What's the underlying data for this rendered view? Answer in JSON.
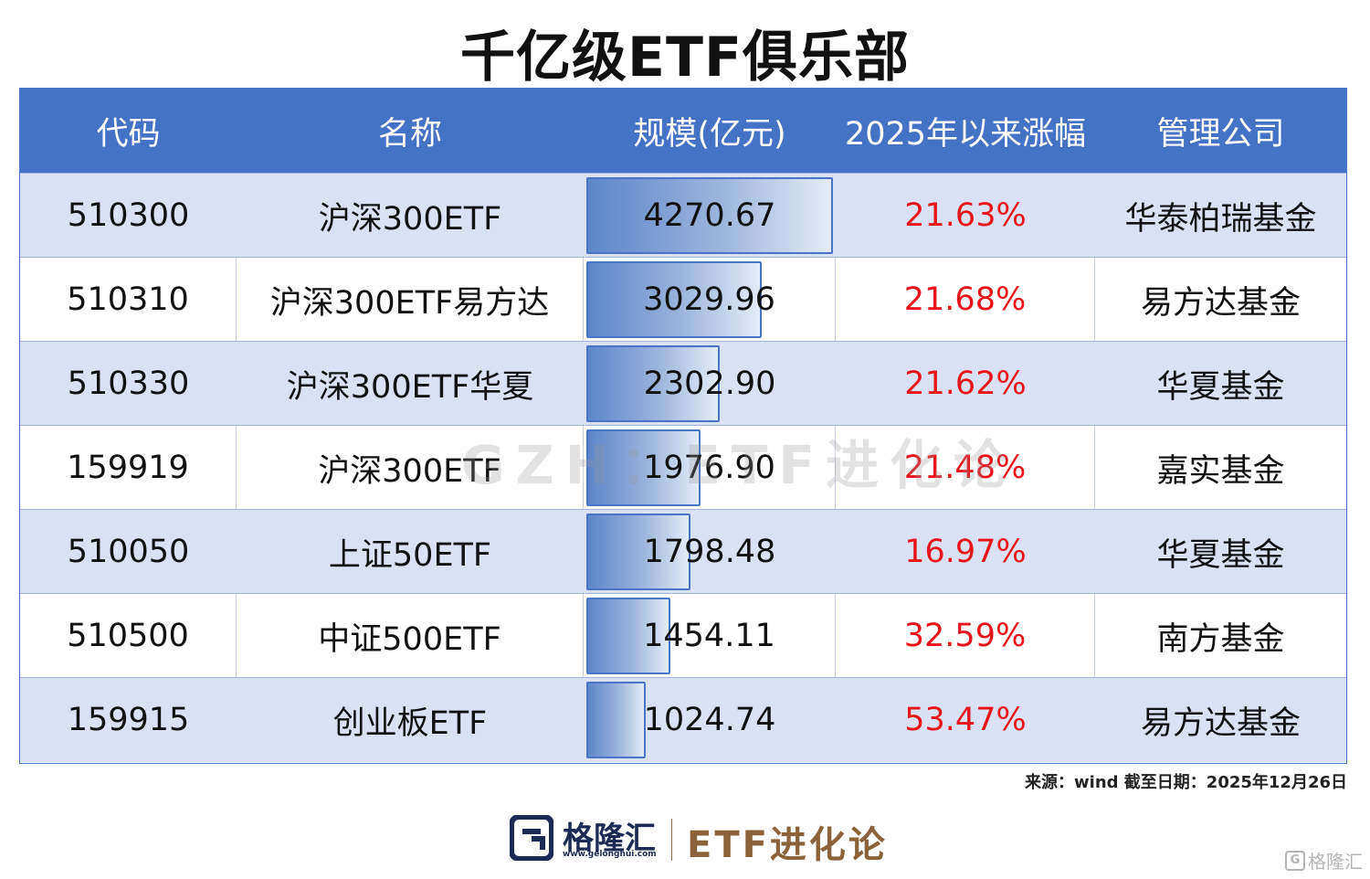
{
  "title": "千亿级ETF俱乐部",
  "table": {
    "headers": [
      "代码",
      "名称",
      "规模(亿元)",
      "2025年以来涨幅",
      "管理公司"
    ],
    "rows": [
      {
        "code": "510300",
        "name": "沪深300ETF",
        "scale": "4270.67",
        "scale_value": 4270.67,
        "change": "21.63%",
        "company": "华泰柏瑞基金"
      },
      {
        "code": "510310",
        "name": "沪深300ETF易方达",
        "scale": "3029.96",
        "scale_value": 3029.96,
        "change": "21.68%",
        "company": "易方达基金"
      },
      {
        "code": "510330",
        "name": "沪深300ETF华夏",
        "scale": "2302.90",
        "scale_value": 2302.9,
        "change": "21.62%",
        "company": "华夏基金"
      },
      {
        "code": "159919",
        "name": "沪深300ETF",
        "scale": "1976.90",
        "scale_value": 1976.9,
        "change": "21.48%",
        "company": "嘉实基金"
      },
      {
        "code": "510050",
        "name": "上证50ETF",
        "scale": "1798.48",
        "scale_value": 1798.48,
        "change": "16.97%",
        "company": "华夏基金"
      },
      {
        "code": "510500",
        "name": "中证500ETF",
        "scale": "1454.11",
        "scale_value": 1454.11,
        "change": "32.59%",
        "company": "南方基金"
      },
      {
        "code": "159915",
        "name": "创业板ETF",
        "scale": "1024.74",
        "scale_value": 1024.74,
        "change": "53.47%",
        "company": "易方达基金"
      }
    ]
  },
  "watermark": "GZH：ETF进化论",
  "source": "来源：wind  截至日期：2025年12月26日",
  "footer": {
    "logo_mark": "G",
    "logo_cn": "格隆汇",
    "logo_url": "www.gelonghui.com",
    "brand": "ETF进化论"
  },
  "corner_watermark": {
    "mark": "G",
    "text": "格隆汇"
  },
  "colors": {
    "header_bg": "#4472c4",
    "stripe": "#dae1f3",
    "change_red": "#e8141c",
    "brand_brown": "#8b6239",
    "logo_navy": "#1d2a55"
  }
}
